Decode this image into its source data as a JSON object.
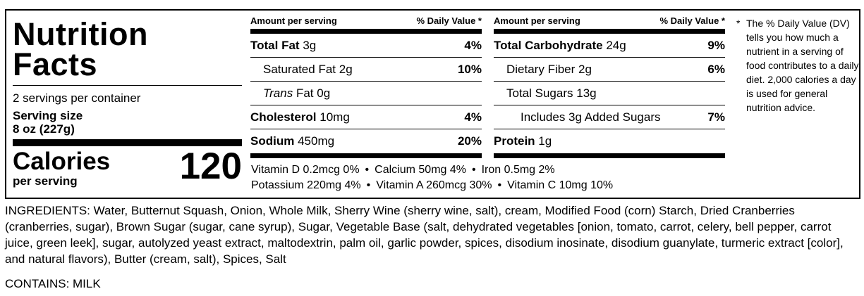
{
  "label": {
    "title_line1": "Nutrition",
    "title_line2": "Facts",
    "servings_per_container": "2 servings per container",
    "serving_size_label": "Serving size",
    "serving_size_value": "8 oz (227g)",
    "calories_label": "Calories",
    "calories_per": "per serving",
    "calories_value": "120"
  },
  "left_table": {
    "header_amount": "Amount per serving",
    "header_dv": "% Daily Value *",
    "rows": [
      {
        "name": "Total Fat",
        "amount": "3g",
        "dv": "4%"
      },
      {
        "name": "Saturated Fat",
        "amount": "2g",
        "dv": "10%"
      },
      {
        "name": "Trans",
        "name_rest": "Fat",
        "amount": "0g",
        "dv": ""
      },
      {
        "name": "Cholesterol",
        "amount": "10mg",
        "dv": "4%"
      },
      {
        "name": "Sodium",
        "amount": "450mg",
        "dv": "20%"
      }
    ]
  },
  "right_table": {
    "header_amount": "Amount per serving",
    "header_dv": "% Daily Value *",
    "rows": [
      {
        "name": "Total Carbohydrate",
        "amount": "24g",
        "dv": "9%"
      },
      {
        "name": "Dietary Fiber",
        "amount": "2g",
        "dv": "6%"
      },
      {
        "name": "Total Sugars",
        "amount": "13g",
        "dv": ""
      },
      {
        "name": "Includes 3g Added Sugars",
        "amount": "",
        "dv": "7%"
      },
      {
        "name": "Protein",
        "amount": "1g",
        "dv": ""
      }
    ]
  },
  "vitamins": {
    "line1": [
      "Vitamin D 0.2mcg 0%",
      "Calcium 50mg 4%",
      "Iron 0.5mg 2%"
    ],
    "line2": [
      "Potassium 220mg 4%",
      "Vitamin A 260mcg 30%",
      "Vitamin C 10mg 10%"
    ],
    "separator": "•"
  },
  "footnote": {
    "star": "*",
    "text": "The % Daily Value (DV) tells you how much a nutrient in a serving of food contributes to a daily diet. 2,000 calories a day is used for general nutrition advice."
  },
  "ingredients": "INGREDIENTS: Water, Butternut Squash, Onion, Whole Milk, Sherry  Wine (sherry wine, salt), cream, Modified Food (corn) Starch, Dried Cranberries (cranberries, sugar), Brown Sugar (sugar, cane syrup), Sugar, Vegetable Base (salt, dehydrated vegetables [onion, tomato, carrot, celery, bell pepper, carrot juice, green leek], sugar, autolyzed yeast extract, maltodextrin, palm oil, garlic powder, spices, disodium inosinate, disodium guanylate, turmeric extract [color], and natural flavors), Butter (cream, salt), Spices, Salt",
  "contains": "CONTAINS: MILK"
}
